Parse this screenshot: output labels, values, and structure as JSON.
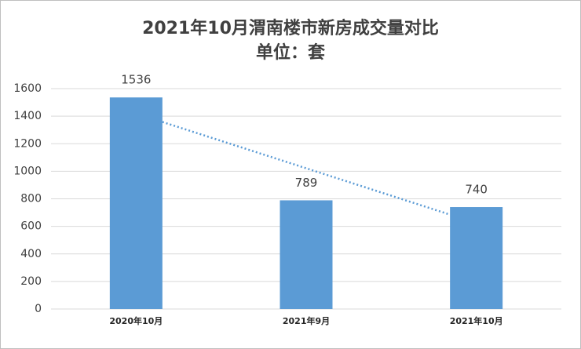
{
  "chart_data": {
    "type": "bar",
    "title": "2021年10月渭南楼市新房成交量对比",
    "subtitle": "单位：套",
    "categories": [
      "2020年10月",
      "2021年9月",
      "2021年10月"
    ],
    "values": [
      1536,
      789,
      740
    ],
    "color": "#5b9bd5",
    "ylim": [
      0,
      1600
    ],
    "yticks": [
      0,
      200,
      400,
      600,
      800,
      1000,
      1200,
      1400,
      1600
    ],
    "grid": true,
    "trendline": "linear"
  }
}
